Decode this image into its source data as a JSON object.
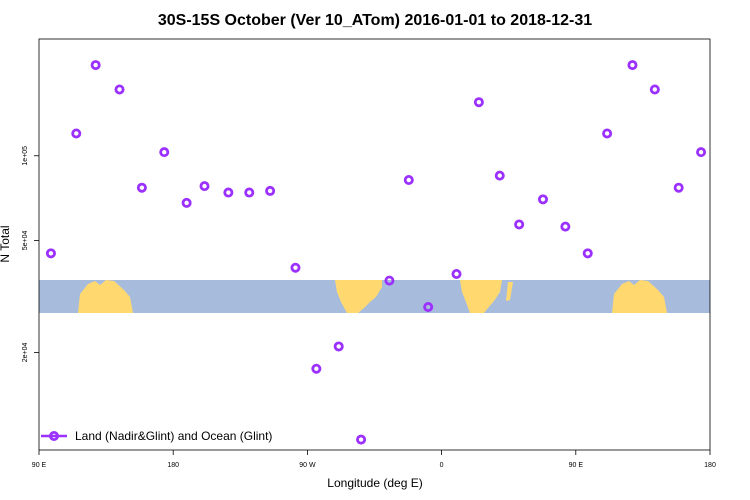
{
  "chart_data": {
    "type": "scatter",
    "title": "30S-15S October (Ver 10_ATom)   2016-01-01 to 2018-12-31",
    "xlabel": "Longitude (deg E)",
    "ylabel": "N Total",
    "x_scale": "linear",
    "y_scale": "log",
    "xlim": [
      90,
      540
    ],
    "ylim": [
      9000,
      260000
    ],
    "x_ticks": [
      {
        "value": 90,
        "label": "90 E"
      },
      {
        "value": 180,
        "label": "180"
      },
      {
        "value": 270,
        "label": "90 W"
      },
      {
        "value": 360,
        "label": "0"
      },
      {
        "value": 450,
        "label": "90 E"
      },
      {
        "value": 540,
        "label": "180"
      }
    ],
    "y_ticks": [
      {
        "value": 20000,
        "label": "2e+04"
      },
      {
        "value": 50000,
        "label": "5e+04"
      },
      {
        "value": 100000,
        "label": "1e+05"
      }
    ],
    "grid": false,
    "legend_position": "bottom-left",
    "series": [
      {
        "name": "Land (Nadir&Glint) and Ocean (Glint)",
        "color": "#9b30ff",
        "marker": "open-circle",
        "x": [
          98,
          115,
          128,
          144,
          159,
          174,
          189,
          201,
          217,
          231,
          245,
          262,
          276,
          291,
          306,
          325,
          338,
          351,
          370,
          385,
          399,
          412,
          428,
          443,
          458,
          471,
          488,
          503,
          519,
          534
        ],
        "y": [
          45000,
          120000,
          210000,
          172000,
          77000,
          103000,
          68000,
          78000,
          74000,
          74000,
          75000,
          40000,
          17500,
          21000,
          9800,
          36000,
          82000,
          29000,
          38000,
          155000,
          85000,
          57000,
          70000,
          56000,
          45000,
          120000,
          210000,
          172000,
          77000,
          103000
        ]
      }
    ],
    "background_map": {
      "ocean_color": "#a7bcdc",
      "land_color": "#ffd970"
    }
  }
}
